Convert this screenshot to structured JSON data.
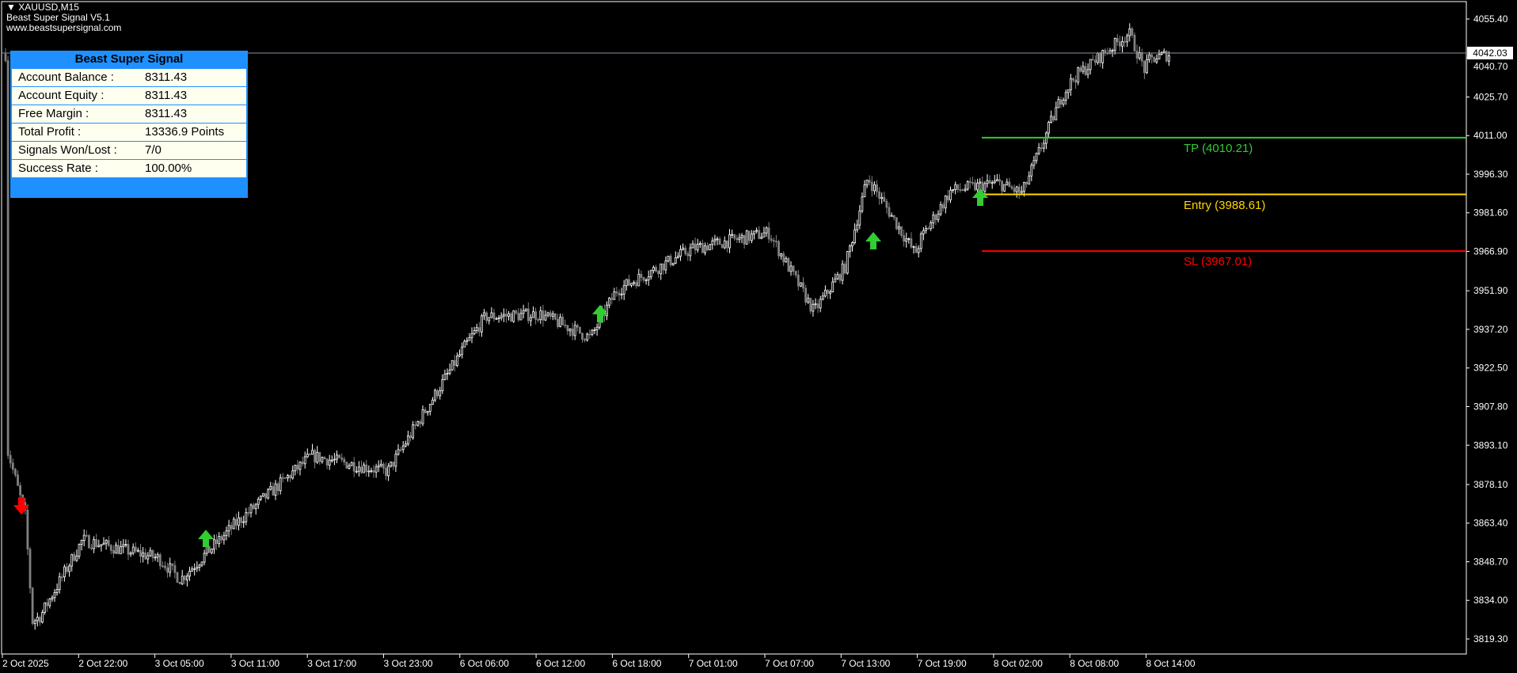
{
  "header": {
    "symbol": "XAUUSD,M15",
    "indicator_name": "Beast Super Signal V5.1",
    "website": "www.beastsupersignal.com"
  },
  "panel": {
    "title": "Beast Super Signal",
    "rows": [
      {
        "label": "Account Balance :",
        "value": "8311.43"
      },
      {
        "label": "Account Equity :",
        "value": "8311.43"
      },
      {
        "label": "Free Margin :",
        "value": "8311.43"
      },
      {
        "label": "Total Profit :",
        "value": "13336.9 Points"
      },
      {
        "label": "Signals Won/Lost :",
        "value": "7/0"
      },
      {
        "label": "Success Rate :",
        "value": "100.00%"
      }
    ],
    "color": "#1e90ff"
  },
  "current_price": "4042.03",
  "levels": {
    "tp": {
      "label": "TP (4010.21)",
      "price": 4010.21,
      "color": "#32cd32"
    },
    "entry": {
      "label": "Entry (3988.61)",
      "price": 3988.61,
      "color": "#ffd700"
    },
    "sl": {
      "label": "SL (3967.01)",
      "price": 3967.01,
      "color": "#ff0000"
    }
  },
  "chart_data": {
    "type": "candlestick",
    "symbol": "XAUUSD",
    "timeframe": "M15",
    "y_ticks": [
      "4055.40",
      "4040.70",
      "4025.70",
      "4011.00",
      "3996.30",
      "3981.60",
      "3966.90",
      "3951.90",
      "3937.20",
      "3922.50",
      "3907.80",
      "3893.10",
      "3878.10",
      "3863.40",
      "3848.70",
      "3834.00",
      "3819.30"
    ],
    "ylim": [
      3819.3,
      4055.4
    ],
    "x_ticks": [
      "2 Oct 2025",
      "2 Oct 22:00",
      "3 Oct 05:00",
      "3 Oct 11:00",
      "3 Oct 17:00",
      "3 Oct 23:00",
      "6 Oct 06:00",
      "6 Oct 12:00",
      "6 Oct 18:00",
      "7 Oct 01:00",
      "7 Oct 07:00",
      "7 Oct 13:00",
      "7 Oct 19:00",
      "8 Oct 02:00",
      "8 Oct 08:00",
      "8 Oct 14:00"
    ],
    "approx_close_at_ticks": [
      3893,
      3857,
      3850,
      3863,
      3889,
      3883,
      3930,
      3943,
      3952,
      3968,
      3974,
      3961,
      3972,
      3993,
      4033,
      4040
    ],
    "last_close": 4042.03,
    "approx_low": 3822,
    "approx_high": 4050,
    "signals": [
      "sell",
      "buy",
      "buy",
      "buy",
      "buy"
    ],
    "bull_color": "#ffffff",
    "bear_color": "#808080",
    "buy_arrow_color": "#32cd32",
    "sell_arrow_color": "#ff0000",
    "grid": false
  }
}
